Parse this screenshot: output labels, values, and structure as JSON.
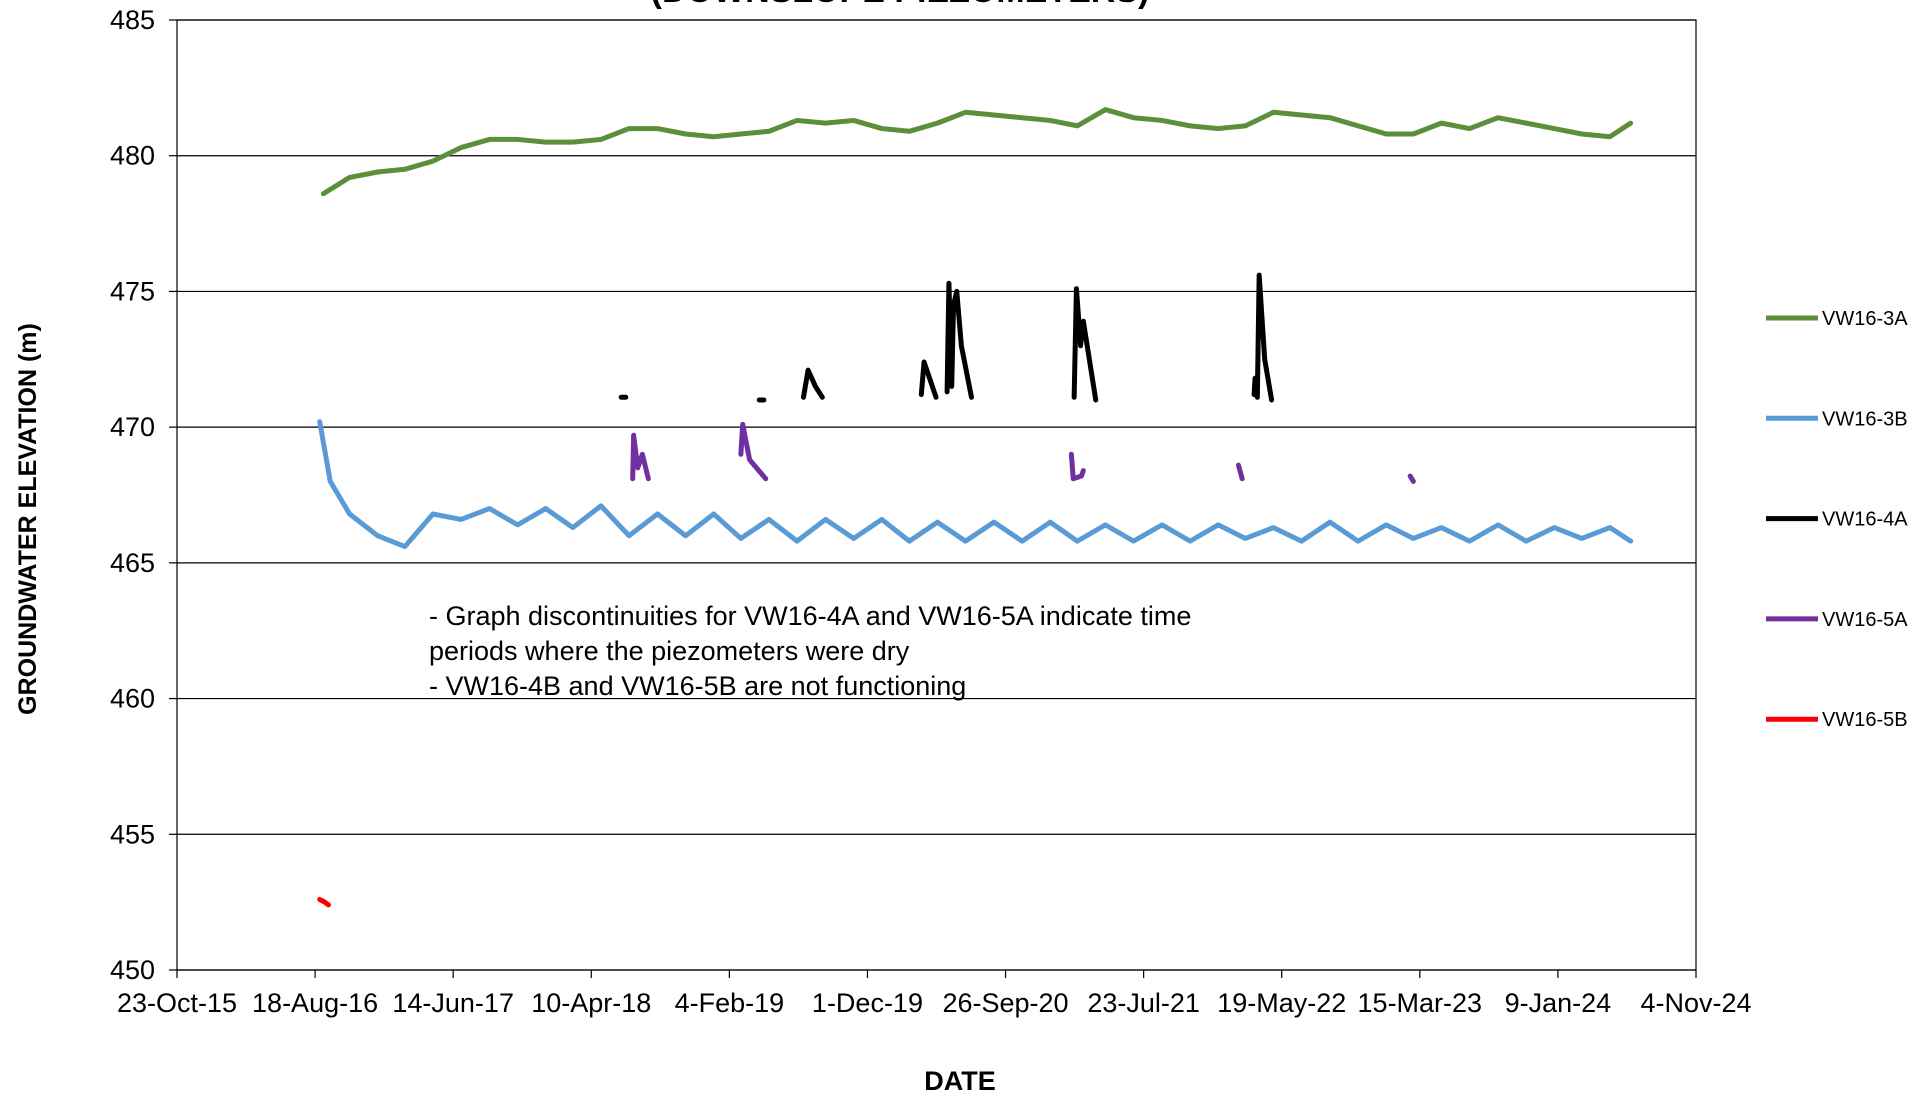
{
  "chart_data": {
    "type": "line",
    "title": "(DOWNSLOPE PIEZOMETERS)",
    "x_label": "DATE",
    "y_label": "GROUNDWATER ELEVATION (m)",
    "annotations": [
      "- Graph discontinuities for VW16-4A and VW16-5A indicate time",
      "periods where the piezometers were dry",
      "- VW16-4B and VW16-5B are not functioning"
    ],
    "xlim": [
      "2015-10-23",
      "2024-11-04"
    ],
    "xticks": [
      {
        "value": "2015-10-23",
        "label": "23-Oct-15"
      },
      {
        "value": "2016-08-18",
        "label": "18-Aug-16"
      },
      {
        "value": "2017-06-14",
        "label": "14-Jun-17"
      },
      {
        "value": "2018-04-10",
        "label": "10-Apr-18"
      },
      {
        "value": "2019-02-04",
        "label": "4-Feb-19"
      },
      {
        "value": "2019-12-01",
        "label": "1-Dec-19"
      },
      {
        "value": "2020-09-26",
        "label": "26-Sep-20"
      },
      {
        "value": "2021-07-23",
        "label": "23-Jul-21"
      },
      {
        "value": "2022-05-19",
        "label": "19-May-22"
      },
      {
        "value": "2023-03-15",
        "label": "15-Mar-23"
      },
      {
        "value": "2024-01-09",
        "label": "9-Jan-24"
      },
      {
        "value": "2024-11-04",
        "label": "4-Nov-24"
      }
    ],
    "ylim": [
      450,
      485
    ],
    "yticks": [
      450,
      455,
      460,
      465,
      470,
      475,
      480,
      485
    ],
    "grid": true,
    "legend": "right",
    "series": [
      {
        "name": "VW16-3A",
        "color": "#5b8f3a",
        "x": [
          "2016-09-05",
          "2016-11-01",
          "2017-01-01",
          "2017-03-01",
          "2017-05-01",
          "2017-07-01",
          "2017-09-01",
          "2017-11-01",
          "2018-01-01",
          "2018-03-01",
          "2018-05-01",
          "2018-07-01",
          "2018-09-01",
          "2018-11-01",
          "2019-01-01",
          "2019-03-01",
          "2019-05-01",
          "2019-07-01",
          "2019-09-01",
          "2019-11-01",
          "2020-01-01",
          "2020-03-01",
          "2020-05-01",
          "2020-07-01",
          "2020-09-01",
          "2020-11-01",
          "2021-01-01",
          "2021-03-01",
          "2021-05-01",
          "2021-07-01",
          "2021-09-01",
          "2021-11-01",
          "2022-01-01",
          "2022-03-01",
          "2022-05-01",
          "2022-07-01",
          "2022-09-01",
          "2022-11-01",
          "2023-01-01",
          "2023-03-01",
          "2023-05-01",
          "2023-07-01",
          "2023-09-01",
          "2023-11-01",
          "2024-01-01",
          "2024-03-01",
          "2024-05-01",
          "2024-06-15"
        ],
        "values": [
          478.6,
          479.2,
          479.4,
          479.5,
          479.8,
          480.3,
          480.6,
          480.6,
          480.5,
          480.5,
          480.6,
          481.0,
          481.0,
          480.8,
          480.7,
          480.8,
          480.9,
          481.3,
          481.2,
          481.3,
          481.0,
          480.9,
          481.2,
          481.6,
          481.5,
          481.4,
          481.3,
          481.1,
          481.7,
          481.4,
          481.3,
          481.1,
          481.0,
          481.1,
          481.6,
          481.5,
          481.4,
          481.1,
          480.8,
          480.8,
          481.2,
          481.0,
          481.4,
          481.2,
          481.0,
          480.8,
          480.7,
          481.2
        ]
      },
      {
        "name": "VW16-3B",
        "color": "#5b9bd5",
        "x": [
          "2016-08-28",
          "2016-09-20",
          "2016-11-01",
          "2017-01-01",
          "2017-03-01",
          "2017-05-01",
          "2017-07-01",
          "2017-09-01",
          "2017-11-01",
          "2018-01-01",
          "2018-03-01",
          "2018-05-01",
          "2018-07-01",
          "2018-09-01",
          "2018-11-01",
          "2019-01-01",
          "2019-03-01",
          "2019-05-01",
          "2019-07-01",
          "2019-09-01",
          "2019-11-01",
          "2020-01-01",
          "2020-03-01",
          "2020-05-01",
          "2020-07-01",
          "2020-09-01",
          "2020-11-01",
          "2021-01-01",
          "2021-03-01",
          "2021-05-01",
          "2021-07-01",
          "2021-09-01",
          "2021-11-01",
          "2022-01-01",
          "2022-03-01",
          "2022-05-01",
          "2022-07-01",
          "2022-09-01",
          "2022-11-01",
          "2023-01-01",
          "2023-03-01",
          "2023-05-01",
          "2023-07-01",
          "2023-09-01",
          "2023-11-01",
          "2024-01-01",
          "2024-03-01",
          "2024-05-01",
          "2024-06-15"
        ],
        "values": [
          470.2,
          468.0,
          466.8,
          466.0,
          465.6,
          466.8,
          466.6,
          467.0,
          466.4,
          467.0,
          466.3,
          467.1,
          466.0,
          466.8,
          466.0,
          466.8,
          465.9,
          466.6,
          465.8,
          466.6,
          465.9,
          466.6,
          465.8,
          466.5,
          465.8,
          466.5,
          465.8,
          466.5,
          465.8,
          466.4,
          465.8,
          466.4,
          465.8,
          466.4,
          465.9,
          466.3,
          465.8,
          466.5,
          465.8,
          466.4,
          465.9,
          466.3,
          465.8,
          466.4,
          465.8,
          466.3,
          465.9,
          466.3,
          465.8
        ]
      },
      {
        "name": "VW16-4A",
        "color": "#000000",
        "x": [
          "2018-06-14",
          "2018-06-24",
          null,
          "2019-04-10",
          "2019-04-20",
          null,
          "2019-07-15",
          "2019-07-25",
          "2019-08-10",
          "2019-08-25",
          null,
          "2020-03-27",
          "2020-04-02",
          "2020-04-20",
          "2020-04-28",
          null,
          "2020-05-22",
          "2020-05-26",
          "2020-06-01",
          "2020-06-05",
          "2020-06-12",
          "2020-06-22",
          "2020-07-14",
          null,
          "2021-02-22",
          "2021-02-27",
          "2021-03-08",
          "2021-03-14",
          "2021-04-10",
          null,
          "2022-03-20",
          "2022-03-22",
          "2022-03-27",
          "2022-03-31",
          "2022-04-12",
          "2022-04-27"
        ],
        "values": [
          471.1,
          471.1,
          null,
          471.0,
          471.0,
          null,
          471.1,
          472.1,
          471.5,
          471.1,
          null,
          471.2,
          472.4,
          471.5,
          471.1,
          null,
          471.3,
          475.3,
          471.5,
          474.5,
          475.0,
          473.0,
          471.1,
          null,
          471.1,
          475.1,
          473.0,
          473.9,
          471.0,
          null,
          471.2,
          471.8,
          471.1,
          475.6,
          472.5,
          471.0
        ]
      },
      {
        "name": "VW16-5A",
        "color": "#7030a0",
        "x": [
          "2018-07-09",
          "2018-07-11",
          "2018-07-20",
          "2018-07-30",
          "2018-08-12",
          null,
          "2019-03-01",
          "2019-03-05",
          "2019-03-20",
          "2019-04-24",
          null,
          "2021-02-16",
          "2021-02-20",
          "2021-03-10",
          "2021-03-14",
          null,
          "2022-02-14",
          "2022-02-22",
          null,
          "2023-02-22",
          "2023-03-01"
        ],
        "values": [
          468.1,
          469.7,
          468.5,
          469.0,
          468.1,
          null,
          469.0,
          470.1,
          468.8,
          468.1,
          null,
          469.0,
          468.1,
          468.2,
          468.4,
          null,
          468.6,
          468.1,
          null,
          468.2,
          468.0
        ]
      },
      {
        "name": "VW16-5B",
        "color": "#ff0000",
        "x": [
          "2016-08-28",
          "2016-09-08",
          "2016-09-16"
        ],
        "values": [
          452.6,
          452.5,
          452.4
        ]
      }
    ]
  }
}
